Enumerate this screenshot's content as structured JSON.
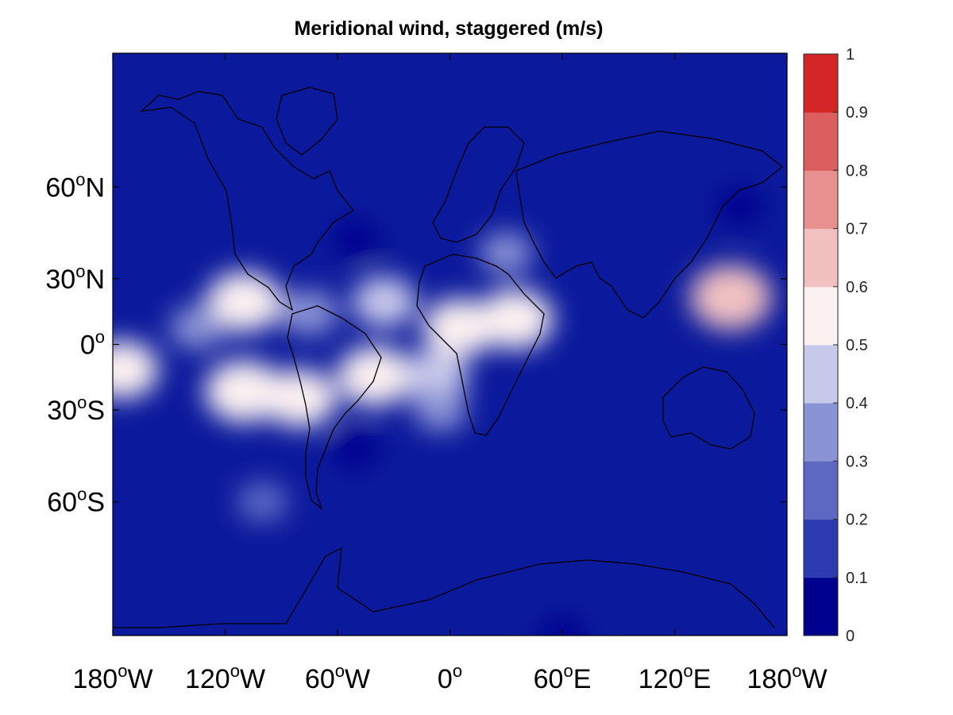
{
  "title": "Meridional wind, staggered (m/s)",
  "map": {
    "projection": "mercator",
    "lon_range": [
      -180,
      180
    ],
    "lat_range": [
      -80,
      80
    ],
    "coastlines": true,
    "background_color": "#0b1a9c"
  },
  "axes": {
    "y_ticks": [
      {
        "deg": "60",
        "hemi": "N"
      },
      {
        "deg": "30",
        "hemi": "N"
      },
      {
        "deg": "0",
        "hemi": ""
      },
      {
        "deg": "30",
        "hemi": "S"
      },
      {
        "deg": "60",
        "hemi": "S"
      }
    ],
    "x_ticks": [
      {
        "deg": "180",
        "hemi": "W"
      },
      {
        "deg": "120",
        "hemi": "W"
      },
      {
        "deg": "60",
        "hemi": "W"
      },
      {
        "deg": "0",
        "hemi": ""
      },
      {
        "deg": "60",
        "hemi": "E"
      },
      {
        "deg": "120",
        "hemi": "E"
      },
      {
        "deg": "180",
        "hemi": "W"
      }
    ]
  },
  "colorbar": {
    "ticks": [
      "0",
      "0.1",
      "0.2",
      "0.3",
      "0.4",
      "0.5",
      "0.6",
      "0.7",
      "0.8",
      "0.9",
      "1"
    ],
    "levels": [
      0,
      0.1,
      0.2,
      0.3,
      0.4,
      0.5,
      0.6,
      0.7,
      0.8,
      0.9,
      1
    ],
    "colors": [
      "#00008f",
      "#2e3bb0",
      "#5c68c2",
      "#8a93d4",
      "#c7c9ea",
      "#fbf1f1",
      "#f1c1c1",
      "#e88f8f",
      "#dc5e5e",
      "#d42626"
    ]
  },
  "chart_data": {
    "type": "heatmap",
    "title": "Meridional wind, staggered (m/s)",
    "xlabel": "",
    "ylabel": "",
    "x_range": [
      -180,
      180
    ],
    "y_range": [
      -80,
      80
    ],
    "value_range": [
      0,
      1
    ],
    "features": [
      {
        "lon": -110,
        "lat": 20,
        "value": 0.55
      },
      {
        "lon": -75,
        "lat": 15,
        "value": 0.35
      },
      {
        "lon": -35,
        "lat": 20,
        "value": 0.42
      },
      {
        "lon": 5,
        "lat": 8,
        "value": 0.52
      },
      {
        "lon": 35,
        "lat": 12,
        "value": 0.55
      },
      {
        "lon": 150,
        "lat": 22,
        "value": 0.62
      },
      {
        "lon": -175,
        "lat": -12,
        "value": 0.52
      },
      {
        "lon": -110,
        "lat": -22,
        "value": 0.58
      },
      {
        "lon": -80,
        "lat": -25,
        "value": 0.52
      },
      {
        "lon": -40,
        "lat": -15,
        "value": 0.55
      },
      {
        "lon": -8,
        "lat": -15,
        "value": 0.45
      },
      {
        "lon": -135,
        "lat": 8,
        "value": 0.32
      },
      {
        "lon": -5,
        "lat": -30,
        "value": 0.3
      },
      {
        "lon": 30,
        "lat": 40,
        "value": 0.3
      },
      {
        "lon": 155,
        "lat": 55,
        "value": 0.05
      },
      {
        "lon": -100,
        "lat": -60,
        "value": 0.28
      },
      {
        "lon": 60,
        "lat": -80,
        "value": 0.05
      },
      {
        "lon": -50,
        "lat": -45,
        "value": 0.05
      },
      {
        "lon": -50,
        "lat": 45,
        "value": 0.05
      }
    ]
  }
}
